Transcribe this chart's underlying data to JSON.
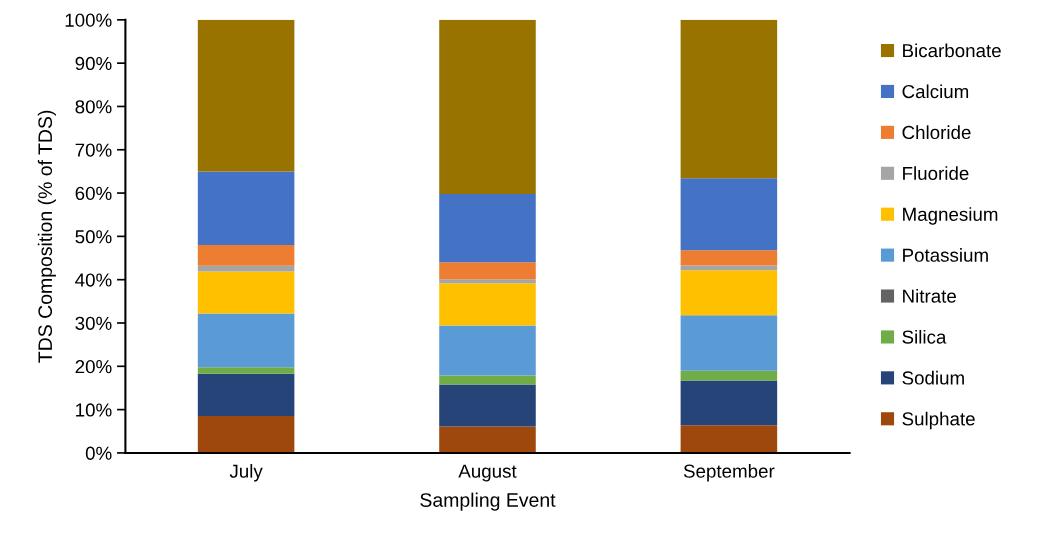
{
  "chart_data": {
    "type": "bar",
    "stacked": true,
    "xlabel": "Sampling Event",
    "ylabel": "TDS Composition (% of TDS)",
    "categories": [
      "July",
      "August",
      "September"
    ],
    "series": [
      {
        "name": "Sulphate",
        "color": "#9e480e",
        "values": [
          8.5,
          6.1,
          6.4
        ]
      },
      {
        "name": "Sodium",
        "color": "#264478",
        "values": [
          9.8,
          9.7,
          10.3
        ]
      },
      {
        "name": "Silica",
        "color": "#70ad47",
        "values": [
          1.5,
          2.1,
          2.3
        ]
      },
      {
        "name": "Nitrate",
        "color": "#636363",
        "values": [
          0,
          0,
          0
        ]
      },
      {
        "name": "Potassium",
        "color": "#5b9bd5",
        "values": [
          12.4,
          11.5,
          12.8
        ]
      },
      {
        "name": "Magnesium",
        "color": "#ffc000",
        "values": [
          9.7,
          9.8,
          10.4
        ]
      },
      {
        "name": "Fluoride",
        "color": "#a5a5a5",
        "values": [
          1.3,
          0.9,
          1.1
        ]
      },
      {
        "name": "Chloride",
        "color": "#ed7d31",
        "values": [
          4.8,
          3.9,
          3.5
        ]
      },
      {
        "name": "Calcium",
        "color": "#4472c4",
        "values": [
          17.0,
          15.8,
          16.6
        ]
      },
      {
        "name": "Bicarbonate",
        "color": "#997300",
        "values": [
          35.0,
          40.2,
          36.6
        ]
      }
    ],
    "ylim": [
      0,
      100
    ],
    "yticks": [
      {
        "value": 0,
        "label": "0%"
      },
      {
        "value": 10,
        "label": "10%"
      },
      {
        "value": 20,
        "label": "20%"
      },
      {
        "value": 30,
        "label": "30%"
      },
      {
        "value": 40,
        "label": "40%"
      },
      {
        "value": 50,
        "label": "50%"
      },
      {
        "value": 60,
        "label": "60%"
      },
      {
        "value": 70,
        "label": "70%"
      },
      {
        "value": 80,
        "label": "80%"
      },
      {
        "value": 90,
        "label": "90%"
      },
      {
        "value": 100,
        "label": "100%"
      }
    ],
    "grid": false,
    "legend": "right"
  }
}
